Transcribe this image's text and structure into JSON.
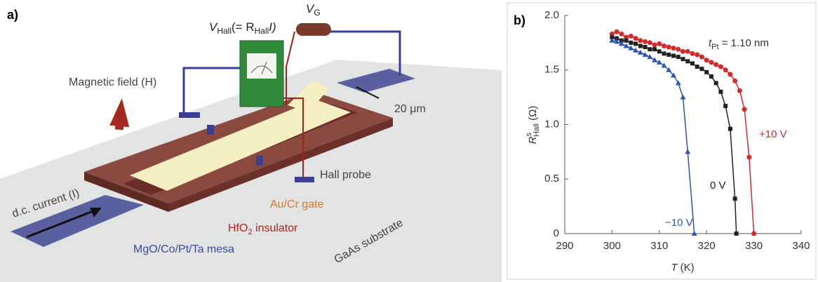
{
  "panel_a": {
    "label": "a)",
    "vhall": {
      "v": "V",
      "sub": "Hall",
      "eq": "(= R",
      "sub2": "Hall",
      "end": "I)"
    },
    "vg": {
      "v": "V",
      "sub": "G"
    },
    "magnetic_field": "Magnetic field (H)",
    "width": "20 μm",
    "hall_probe": "Hall probe",
    "current": "d.c. current (I)",
    "gate": "Au/Cr gate",
    "insulator": {
      "main": "HfO",
      "sub": "2",
      "rest": " insulator"
    },
    "mesa": "MgO/Co/Pt/Ta mesa",
    "substrate": "GaAs substrate"
  },
  "panel_b": {
    "label": "b)"
  },
  "chart_data": {
    "type": "scatter",
    "xlabel": {
      "main": "T",
      "unit": " (K)"
    },
    "ylabel": {
      "main": "R",
      "sup": "s",
      "sub": "Hall",
      "unit": " (Ω)"
    },
    "annotation": {
      "t": "t",
      "sub": "Pt",
      "rest": " = 1.10 nm"
    },
    "xlim": [
      290,
      340
    ],
    "xticks": [
      290,
      300,
      310,
      320,
      330,
      340
    ],
    "ylim": [
      0,
      2
    ],
    "yticks": [
      0,
      0.5,
      {
        "value": 1,
        "label": "1.0"
      },
      1.5,
      {
        "value": 2,
        "label": "2.0"
      }
    ],
    "series": [
      {
        "name": "+10 V",
        "color": "#d42a2a",
        "marker": "circle",
        "x": [
          300,
          301,
          302,
          303,
          304,
          305,
          306,
          307,
          308,
          309,
          310,
          311,
          312,
          313,
          314,
          315,
          316,
          317,
          318,
          319,
          320,
          321,
          322,
          323,
          324,
          325,
          326,
          327,
          328,
          329,
          330
        ],
        "values": [
          1.83,
          1.85,
          1.83,
          1.8,
          1.81,
          1.79,
          1.77,
          1.76,
          1.75,
          1.73,
          1.74,
          1.72,
          1.71,
          1.7,
          1.69,
          1.67,
          1.67,
          1.65,
          1.64,
          1.62,
          1.59,
          1.57,
          1.55,
          1.53,
          1.5,
          1.46,
          1.4,
          1.31,
          1.14,
          0.7,
          0
        ]
      },
      {
        "name": "0 V",
        "color": "#222222",
        "marker": "square",
        "x": [
          300,
          301,
          302,
          303,
          304,
          305,
          306,
          307,
          308,
          309,
          310,
          311,
          312,
          313,
          314,
          315,
          316,
          317,
          318,
          319,
          320,
          321,
          322,
          323,
          324,
          325,
          326,
          326.3
        ],
        "values": [
          1.8,
          1.79,
          1.77,
          1.77,
          1.75,
          1.74,
          1.72,
          1.71,
          1.69,
          1.69,
          1.67,
          1.65,
          1.64,
          1.63,
          1.62,
          1.6,
          1.58,
          1.56,
          1.53,
          1.51,
          1.48,
          1.44,
          1.38,
          1.3,
          1.17,
          0.96,
          0.32,
          0
        ]
      },
      {
        "name": "−10 V",
        "color": "#2b55b5",
        "marker": "triangle",
        "x": [
          300,
          301,
          302,
          303,
          304,
          305,
          306,
          307,
          308,
          309,
          310,
          311,
          312,
          313,
          314,
          315,
          316,
          317.4
        ],
        "values": [
          1.77,
          1.76,
          1.74,
          1.72,
          1.7,
          1.68,
          1.66,
          1.64,
          1.62,
          1.59,
          1.57,
          1.54,
          1.5,
          1.45,
          1.38,
          1.25,
          0.75,
          0
        ]
      }
    ]
  }
}
